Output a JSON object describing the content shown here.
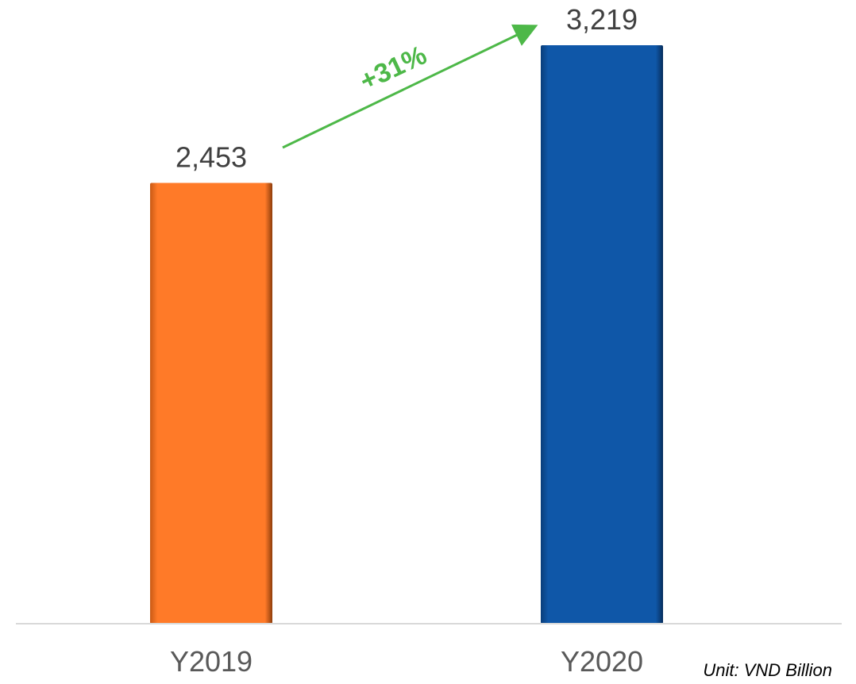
{
  "chart_data": {
    "type": "bar",
    "categories": [
      "Y2019",
      "Y2020"
    ],
    "values": [
      2453,
      3219
    ],
    "value_labels": [
      "2,453",
      "3,219"
    ],
    "colors": [
      "#FF7A28",
      "#0F57A8"
    ],
    "ylim": [
      0,
      3219
    ],
    "grid": false,
    "annotation": {
      "text": "+31%",
      "color": "#4DB848"
    },
    "unit": "Unit: VND Billion"
  }
}
